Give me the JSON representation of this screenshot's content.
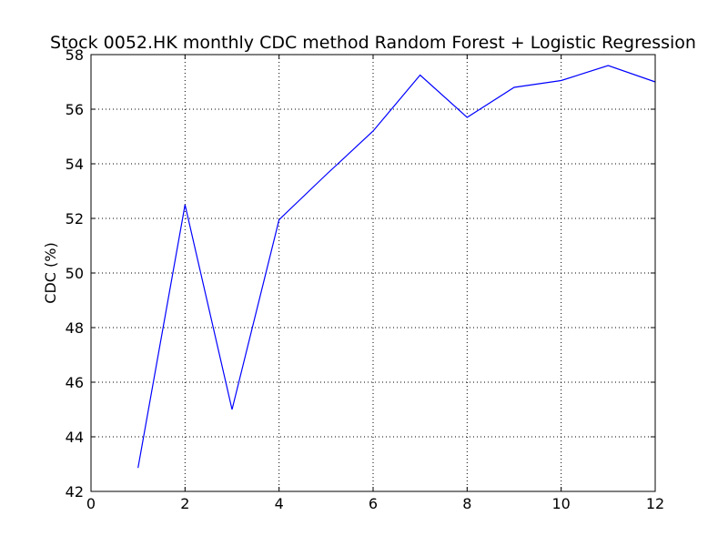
{
  "chart_data": {
    "type": "line",
    "title": "Stock 0052.HK monthly CDC method Random Forest + Logistic Regression",
    "xlabel": "",
    "ylabel": "CDC (%)",
    "xlim": [
      0,
      12
    ],
    "ylim": [
      42,
      58
    ],
    "x_ticks": [
      0,
      2,
      4,
      6,
      8,
      10,
      12
    ],
    "y_ticks": [
      42,
      44,
      46,
      48,
      50,
      52,
      54,
      56,
      58
    ],
    "grid": true,
    "series": [
      {
        "color": "#0000ff",
        "x": [
          1,
          2,
          3,
          4,
          5,
          6,
          7,
          8,
          9,
          10,
          11,
          12
        ],
        "values": [
          42.86,
          52.5,
          45.0,
          51.95,
          53.6,
          55.2,
          57.25,
          55.7,
          56.8,
          57.05,
          57.6,
          57.0
        ]
      }
    ]
  }
}
